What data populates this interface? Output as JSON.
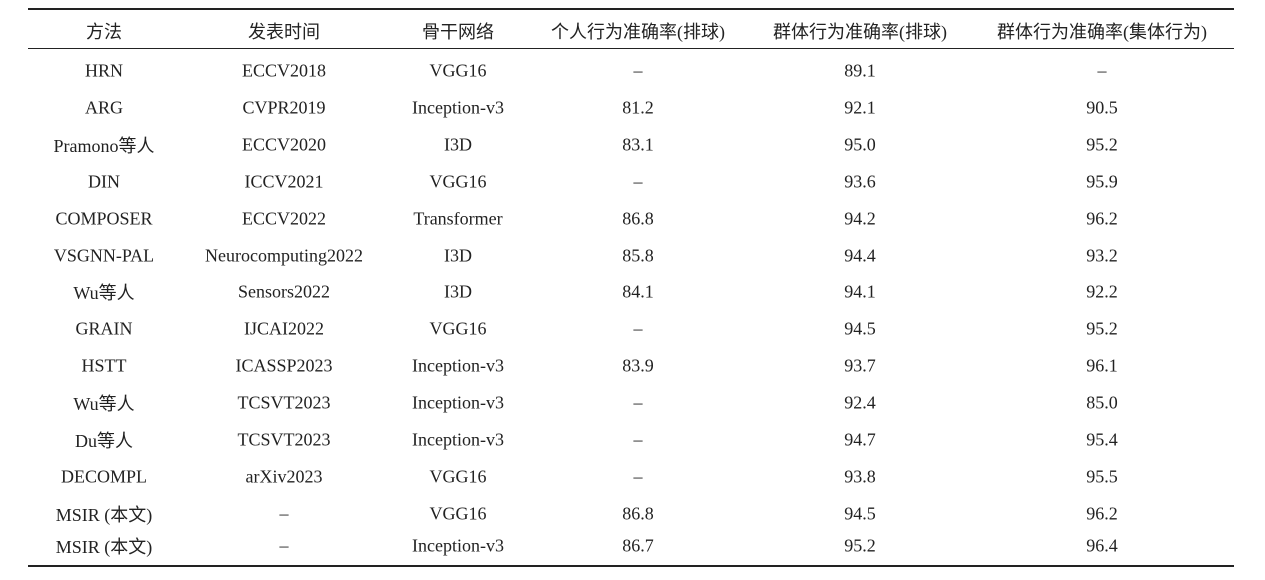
{
  "table": {
    "header": [
      "方法",
      "发表时间",
      "骨干网络",
      "个人行为准确率(排球)",
      "群体行为准确率(排球)",
      "群体行为准确率(集体行为)"
    ],
    "rows": [
      [
        "HRN",
        "ECCV2018",
        "VGG16",
        "–",
        "89.1",
        "–"
      ],
      [
        "ARG",
        "CVPR2019",
        "Inception-v3",
        "81.2",
        "92.1",
        "90.5"
      ],
      [
        "Pramono等人",
        "ECCV2020",
        "I3D",
        "83.1",
        "95.0",
        "95.2"
      ],
      [
        "DIN",
        "ICCV2021",
        "VGG16",
        "–",
        "93.6",
        "95.9"
      ],
      [
        "COMPOSER",
        "ECCV2022",
        "Transformer",
        "86.8",
        "94.2",
        "96.2"
      ],
      [
        "VSGNN-PAL",
        "Neurocomputing2022",
        "I3D",
        "85.8",
        "94.4",
        "93.2"
      ],
      [
        "Wu等人",
        "Sensors2022",
        "I3D",
        "84.1",
        "94.1",
        "92.2"
      ],
      [
        "GRAIN",
        "IJCAI2022",
        "VGG16",
        "–",
        "94.5",
        "95.2"
      ],
      [
        "HSTT",
        "ICASSP2023",
        "Inception-v3",
        "83.9",
        "93.7",
        "96.1"
      ],
      [
        "Wu等人",
        "TCSVT2023",
        "Inception-v3",
        "–",
        "92.4",
        "85.0"
      ],
      [
        "Du等人",
        "TCSVT2023",
        "Inception-v3",
        "–",
        "94.7",
        "95.4"
      ],
      [
        "DECOMPL",
        "arXiv2023",
        "VGG16",
        "–",
        "93.8",
        "95.5"
      ],
      [
        "MSIR (本文)",
        "–",
        "VGG16",
        "86.8",
        "94.5",
        "96.2"
      ],
      [
        "MSIR (本文)",
        "–",
        "Inception-v3",
        "86.7",
        "95.2",
        "96.4"
      ]
    ]
  }
}
